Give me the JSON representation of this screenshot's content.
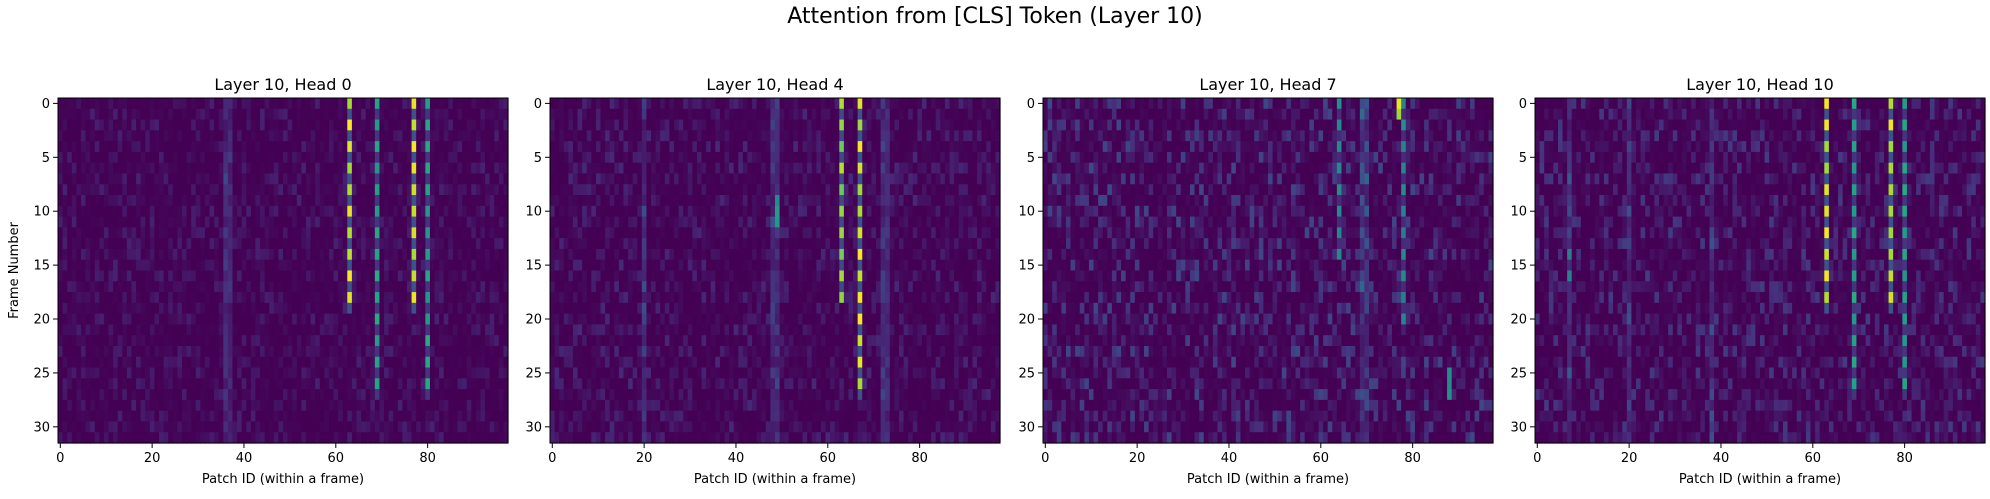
{
  "figure": {
    "suptitle": "Attention from [CLS] Token (Layer 10)"
  },
  "chart_data": [
    {
      "type": "heatmap",
      "title": "Layer 10, Head 0",
      "xlabel": "Patch ID (within a frame)",
      "ylabel": "Frame Number",
      "x_range": [
        0,
        97
      ],
      "y_range": [
        0,
        31
      ],
      "xticks": [
        0,
        20,
        40,
        60,
        80
      ],
      "yticks": [
        0,
        5,
        10,
        15,
        20,
        25,
        30
      ],
      "colormap": "viridis",
      "seed": 11,
      "noise": 0.1,
      "warm_columns": [
        36,
        37
      ],
      "hotspots": [
        {
          "col": 63,
          "rows": [
            0,
            19
          ],
          "value": 1.0
        },
        {
          "col": 69,
          "rows": [
            0,
            27
          ],
          "value": 0.62
        },
        {
          "col": 77,
          "rows": [
            0,
            19
          ],
          "value": 1.0
        },
        {
          "col": 80,
          "rows": [
            0,
            27
          ],
          "value": 0.62
        }
      ]
    },
    {
      "type": "heatmap",
      "title": "Layer 10, Head 4",
      "xlabel": "Patch ID (within a frame)",
      "ylabel": "",
      "x_range": [
        0,
        97
      ],
      "y_range": [
        0,
        31
      ],
      "xticks": [
        0,
        20,
        40,
        60,
        80
      ],
      "yticks": [
        0,
        5,
        10,
        15,
        20,
        25,
        30
      ],
      "colormap": "viridis",
      "seed": 23,
      "noise": 0.12,
      "warm_columns": [
        20,
        48,
        49,
        72,
        73
      ],
      "hotspots": [
        {
          "col": 63,
          "rows": [
            0,
            18
          ],
          "value": 0.9
        },
        {
          "col": 67,
          "rows": [
            0,
            27
          ],
          "value": 1.0
        },
        {
          "col": 49,
          "rows": [
            9,
            11
          ],
          "value": 0.55
        }
      ]
    },
    {
      "type": "heatmap",
      "title": "Layer 10, Head 7",
      "xlabel": "Patch ID (within a frame)",
      "ylabel": "",
      "x_range": [
        0,
        97
      ],
      "y_range": [
        0,
        31
      ],
      "xticks": [
        0,
        20,
        40,
        60,
        80
      ],
      "yticks": [
        0,
        5,
        10,
        15,
        20,
        25,
        30
      ],
      "colormap": "viridis",
      "seed": 37,
      "noise": 0.22,
      "warm_columns": [
        69,
        70
      ],
      "hotspots": [
        {
          "col": 77,
          "rows": [
            0,
            1
          ],
          "value": 1.0
        },
        {
          "col": 64,
          "rows": [
            0,
            14
          ],
          "value": 0.5
        },
        {
          "col": 78,
          "rows": [
            0,
            20
          ],
          "value": 0.5
        },
        {
          "col": 88,
          "rows": [
            25,
            27
          ],
          "value": 0.55
        }
      ]
    },
    {
      "type": "heatmap",
      "title": "Layer 10, Head 10",
      "xlabel": "Patch ID (within a frame)",
      "ylabel": "",
      "x_range": [
        0,
        97
      ],
      "y_range": [
        0,
        31
      ],
      "xticks": [
        0,
        20,
        40,
        60,
        80
      ],
      "yticks": [
        0,
        5,
        10,
        15,
        20,
        25,
        30
      ],
      "colormap": "viridis",
      "seed": 51,
      "noise": 0.18,
      "warm_columns": [
        7,
        20,
        38
      ],
      "hotspots": [
        {
          "col": 63,
          "rows": [
            0,
            19
          ],
          "value": 1.0
        },
        {
          "col": 69,
          "rows": [
            0,
            27
          ],
          "value": 0.62
        },
        {
          "col": 77,
          "rows": [
            0,
            19
          ],
          "value": 1.0
        },
        {
          "col": 80,
          "rows": [
            0,
            27
          ],
          "value": 0.62
        },
        {
          "col": 7,
          "rows": [
            13,
            17
          ],
          "value": 0.5
        }
      ]
    }
  ]
}
